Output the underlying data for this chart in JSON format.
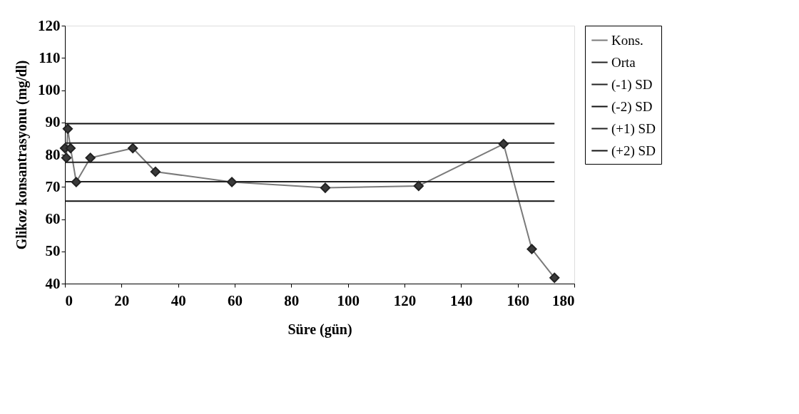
{
  "chart_data": {
    "type": "line",
    "xlabel": "Süre (gün)",
    "ylabel": "Glikoz konsantrasyonu (mg/dl)",
    "xlim": [
      0,
      180
    ],
    "xticks": [
      0,
      20,
      40,
      60,
      80,
      100,
      120,
      140,
      160,
      180
    ],
    "ylim": [
      40,
      120
    ],
    "yticks": [
      40,
      50,
      60,
      70,
      80,
      90,
      100,
      110,
      120
    ],
    "grid": false,
    "legend": "right",
    "line_style": "solid",
    "series": [
      {
        "name": "Kons.",
        "color": "#7a7a7a",
        "marker": "diamond",
        "x": [
          0,
          0.5,
          1,
          2,
          4,
          9,
          24,
          32,
          59,
          92,
          125,
          155,
          165,
          173
        ],
        "values": [
          82,
          79,
          88,
          82,
          71.5,
          79,
          82,
          74.7,
          71.5,
          69.7,
          70.3,
          83.3,
          50.7,
          41.8
        ]
      },
      {
        "name": "Orta",
        "color": "#222222",
        "marker": "none",
        "x": [
          0,
          173
        ],
        "values": [
          77.6,
          77.6
        ]
      },
      {
        "name": "(-1) SD",
        "color": "#222222",
        "marker": "none",
        "x": [
          0,
          173
        ],
        "values": [
          71.6,
          71.6
        ]
      },
      {
        "name": "(-2) SD",
        "color": "#111111",
        "marker": "none",
        "x": [
          0,
          173
        ],
        "values": [
          65.6,
          65.6
        ]
      },
      {
        "name": "(+1) SD",
        "color": "#222222",
        "marker": "none",
        "x": [
          0,
          173
        ],
        "values": [
          83.6,
          83.6
        ]
      },
      {
        "name": "(+2) SD",
        "color": "#111111",
        "marker": "none",
        "x": [
          0,
          173
        ],
        "values": [
          89.6,
          89.6
        ]
      }
    ]
  }
}
